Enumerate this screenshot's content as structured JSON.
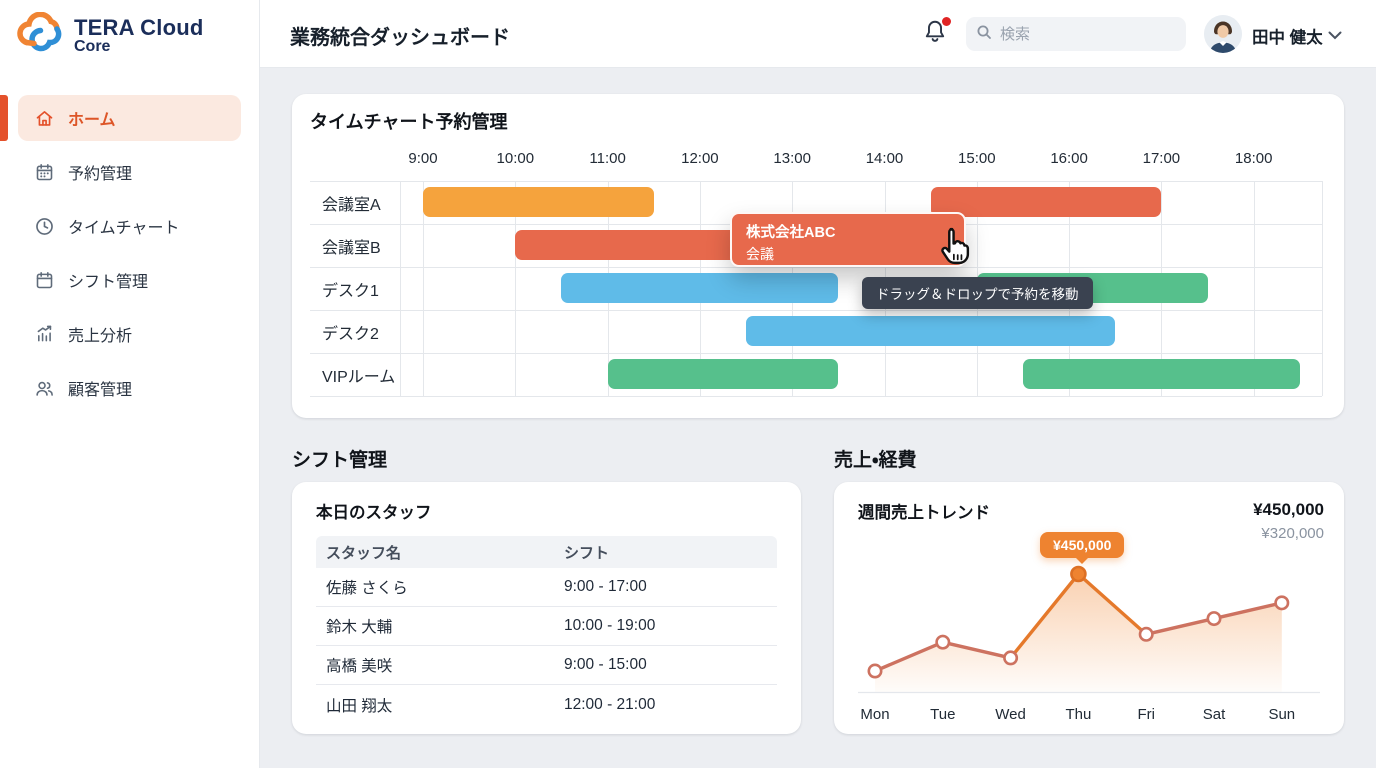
{
  "sidebar": {
    "logo": {
      "title": "TERA Cloud",
      "subtitle": "Core"
    },
    "items": [
      {
        "key": "home",
        "label": "ホーム",
        "icon": "home-icon",
        "active": true
      },
      {
        "key": "reservation",
        "label": "予約管理",
        "icon": "calendar-check-icon",
        "active": false
      },
      {
        "key": "timechart",
        "label": "タイムチャート",
        "icon": "clock-icon",
        "active": false
      },
      {
        "key": "shift",
        "label": "シフト管理",
        "icon": "calendar-icon",
        "active": false
      },
      {
        "key": "sales",
        "label": "売上分析",
        "icon": "chart-up-icon",
        "active": false
      },
      {
        "key": "customer",
        "label": "顧客管理",
        "icon": "users-icon",
        "active": false
      }
    ]
  },
  "header": {
    "title": "業務統合ダッシュボード",
    "search_placeholder": "検索",
    "user_name": "田中 健太",
    "has_notification": true
  },
  "timechart": {
    "title": "タイムチャート予約管理",
    "hours": [
      "9:00",
      "10:00",
      "11:00",
      "12:00",
      "13:00",
      "14:00",
      "15:00",
      "16:00",
      "17:00",
      "18:00"
    ],
    "rows": [
      "会議室A",
      "会議室B",
      "デスク1",
      "デスク2",
      "VIPルーム"
    ],
    "bars": [
      {
        "row": 0,
        "start": "9:00",
        "end": "11:30",
        "color": "orange"
      },
      {
        "row": 0,
        "start": "14:30",
        "end": "17:00",
        "color": "coral"
      },
      {
        "row": 1,
        "start": "10:00",
        "end": "13:30",
        "color": "coral"
      },
      {
        "row": 2,
        "start": "10:30",
        "end": "13:30",
        "color": "blue"
      },
      {
        "row": 2,
        "start": "15:00",
        "end": "17:30",
        "color": "green"
      },
      {
        "row": 3,
        "start": "12:30",
        "end": "16:30",
        "color": "blue"
      },
      {
        "row": 4,
        "start": "11:00",
        "end": "13:30",
        "color": "green"
      },
      {
        "row": 4,
        "start": "15:30",
        "end": "18:30",
        "color": "green"
      }
    ],
    "drag_card": {
      "line1": "株式会社ABC",
      "line2": "会議"
    },
    "drag_tooltip": "ドラッグ＆ドロップで予約を移動"
  },
  "shift": {
    "section_title": "シフト管理",
    "card_title": "本日のスタッフ",
    "columns": [
      "スタッフ名",
      "シフト"
    ],
    "staff": [
      {
        "name": "佐藤 さくら",
        "shift": "9:00 - 17:00"
      },
      {
        "name": "鈴木 大輔",
        "shift": "10:00 - 19:00"
      },
      {
        "name": "高橋 美咲",
        "shift": "9:00 - 15:00"
      },
      {
        "name": "山田 翔太",
        "shift": "12:00 - 21:00"
      }
    ]
  },
  "sales": {
    "section_title": "売上・経費",
    "card_title": "週間売上トレンド",
    "primary_value": "¥450,000",
    "secondary_value": "¥320,000",
    "peak_label": "¥450,000",
    "chart_data": {
      "type": "line",
      "categories": [
        "Mon",
        "Tue",
        "Wed",
        "Thu",
        "Fri",
        "Sat",
        "Sun"
      ],
      "values": [
        80000,
        190000,
        130000,
        450000,
        220000,
        280000,
        340000
      ],
      "highlight_index": 3,
      "highlight_label": "¥450,000",
      "ylim": [
        0,
        450000
      ],
      "grid": false,
      "legend": false
    }
  },
  "colors": {
    "accent_orange": "#E4512B",
    "active_bg": "#FBE9E0",
    "brand_navy": "#1B2E5A",
    "bar_orange": "#F5A33D",
    "bar_coral": "#E7694C",
    "bar_blue": "#5FBBE8",
    "bar_green": "#56C08C",
    "tooltip_bg": "#3A4250",
    "badge_orange": "#EE8330",
    "line_coral": "#CD7260",
    "line_orange": "#E5792B",
    "notification_red": "#E02424"
  }
}
